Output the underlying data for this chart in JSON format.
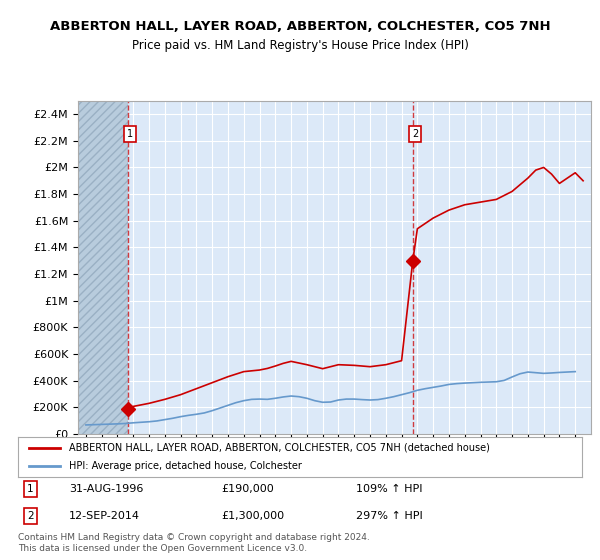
{
  "title": "ABBERTON HALL, LAYER ROAD, ABBERTON, COLCHESTER, CO5 7NH",
  "subtitle": "Price paid vs. HM Land Registry's House Price Index (HPI)",
  "bg_color": "#dce9f8",
  "hatch_color": "#b8ccdd",
  "grid_color": "#ffffff",
  "red_color": "#cc0000",
  "blue_color": "#6699cc",
  "ylim": [
    0,
    2500000
  ],
  "yticks": [
    0,
    200000,
    400000,
    600000,
    800000,
    1000000,
    1200000,
    1400000,
    1600000,
    1800000,
    2000000,
    2200000,
    2400000
  ],
  "ytick_labels": [
    "£0",
    "£200K",
    "£400K",
    "£600K",
    "£800K",
    "£1M",
    "£1.2M",
    "£1.4M",
    "£1.6M",
    "£1.8M",
    "£2M",
    "£2.2M",
    "£2.4M"
  ],
  "xlim_start": 1993.5,
  "xlim_end": 2026.0,
  "purchase1_year": 1996.67,
  "purchase1_value": 190000,
  "purchase2_year": 2014.71,
  "purchase2_value": 1300000,
  "legend_label1": "ABBERTON HALL, LAYER ROAD, ABBERTON, COLCHESTER, CO5 7NH (detached house)",
  "legend_label2": "HPI: Average price, detached house, Colchester",
  "annotation1_date": "31-AUG-1996",
  "annotation1_price": "£190,000",
  "annotation1_hpi": "109% ↑ HPI",
  "annotation2_date": "12-SEP-2014",
  "annotation2_price": "£1,300,000",
  "annotation2_hpi": "297% ↑ HPI",
  "footer": "Contains HM Land Registry data © Crown copyright and database right 2024.\nThis data is licensed under the Open Government Licence v3.0.",
  "hpi_years": [
    1994,
    1994.5,
    1995,
    1995.5,
    1996,
    1996.5,
    1997,
    1997.5,
    1998,
    1998.5,
    1999,
    1999.5,
    2000,
    2000.5,
    2001,
    2001.5,
    2002,
    2002.5,
    2003,
    2003.5,
    2004,
    2004.5,
    2005,
    2005.5,
    2006,
    2006.5,
    2007,
    2007.5,
    2008,
    2008.5,
    2009,
    2009.5,
    2010,
    2010.5,
    2011,
    2011.5,
    2012,
    2012.5,
    2013,
    2013.5,
    2014,
    2014.5,
    2015,
    2015.5,
    2016,
    2016.5,
    2017,
    2017.5,
    2018,
    2018.5,
    2019,
    2019.5,
    2020,
    2020.5,
    2021,
    2021.5,
    2022,
    2022.5,
    2023,
    2023.5,
    2024,
    2024.5,
    2025
  ],
  "hpi_values": [
    68000,
    70000,
    72000,
    74000,
    76000,
    79000,
    84000,
    88000,
    92000,
    98000,
    108000,
    118000,
    130000,
    140000,
    148000,
    158000,
    175000,
    195000,
    215000,
    235000,
    250000,
    260000,
    262000,
    260000,
    268000,
    278000,
    285000,
    280000,
    268000,
    250000,
    238000,
    240000,
    255000,
    262000,
    262000,
    258000,
    255000,
    258000,
    268000,
    280000,
    295000,
    310000,
    328000,
    340000,
    350000,
    360000,
    372000,
    378000,
    382000,
    385000,
    388000,
    390000,
    392000,
    402000,
    428000,
    452000,
    465000,
    460000,
    455000,
    458000,
    462000,
    465000,
    468000
  ],
  "house_years": [
    1996.67,
    1997,
    1998,
    1999,
    2000,
    2001,
    2002,
    2003,
    2004,
    2005,
    2005.5,
    2006,
    2006.5,
    2007,
    2008,
    2009,
    2010,
    2011,
    2012,
    2013,
    2014,
    2014.71,
    2015,
    2016,
    2017,
    2018,
    2019,
    2020,
    2021,
    2022,
    2022.5,
    2023,
    2023.5,
    2024,
    2024.5,
    2025,
    2025.5
  ],
  "house_values": [
    190000,
    207000,
    230000,
    260000,
    295000,
    340000,
    385000,
    430000,
    468000,
    480000,
    492000,
    510000,
    530000,
    545000,
    520000,
    490000,
    520000,
    515000,
    505000,
    520000,
    550000,
    1300000,
    1540000,
    1620000,
    1680000,
    1720000,
    1740000,
    1760000,
    1820000,
    1920000,
    1980000,
    2000000,
    1950000,
    1880000,
    1920000,
    1960000,
    1900000
  ]
}
